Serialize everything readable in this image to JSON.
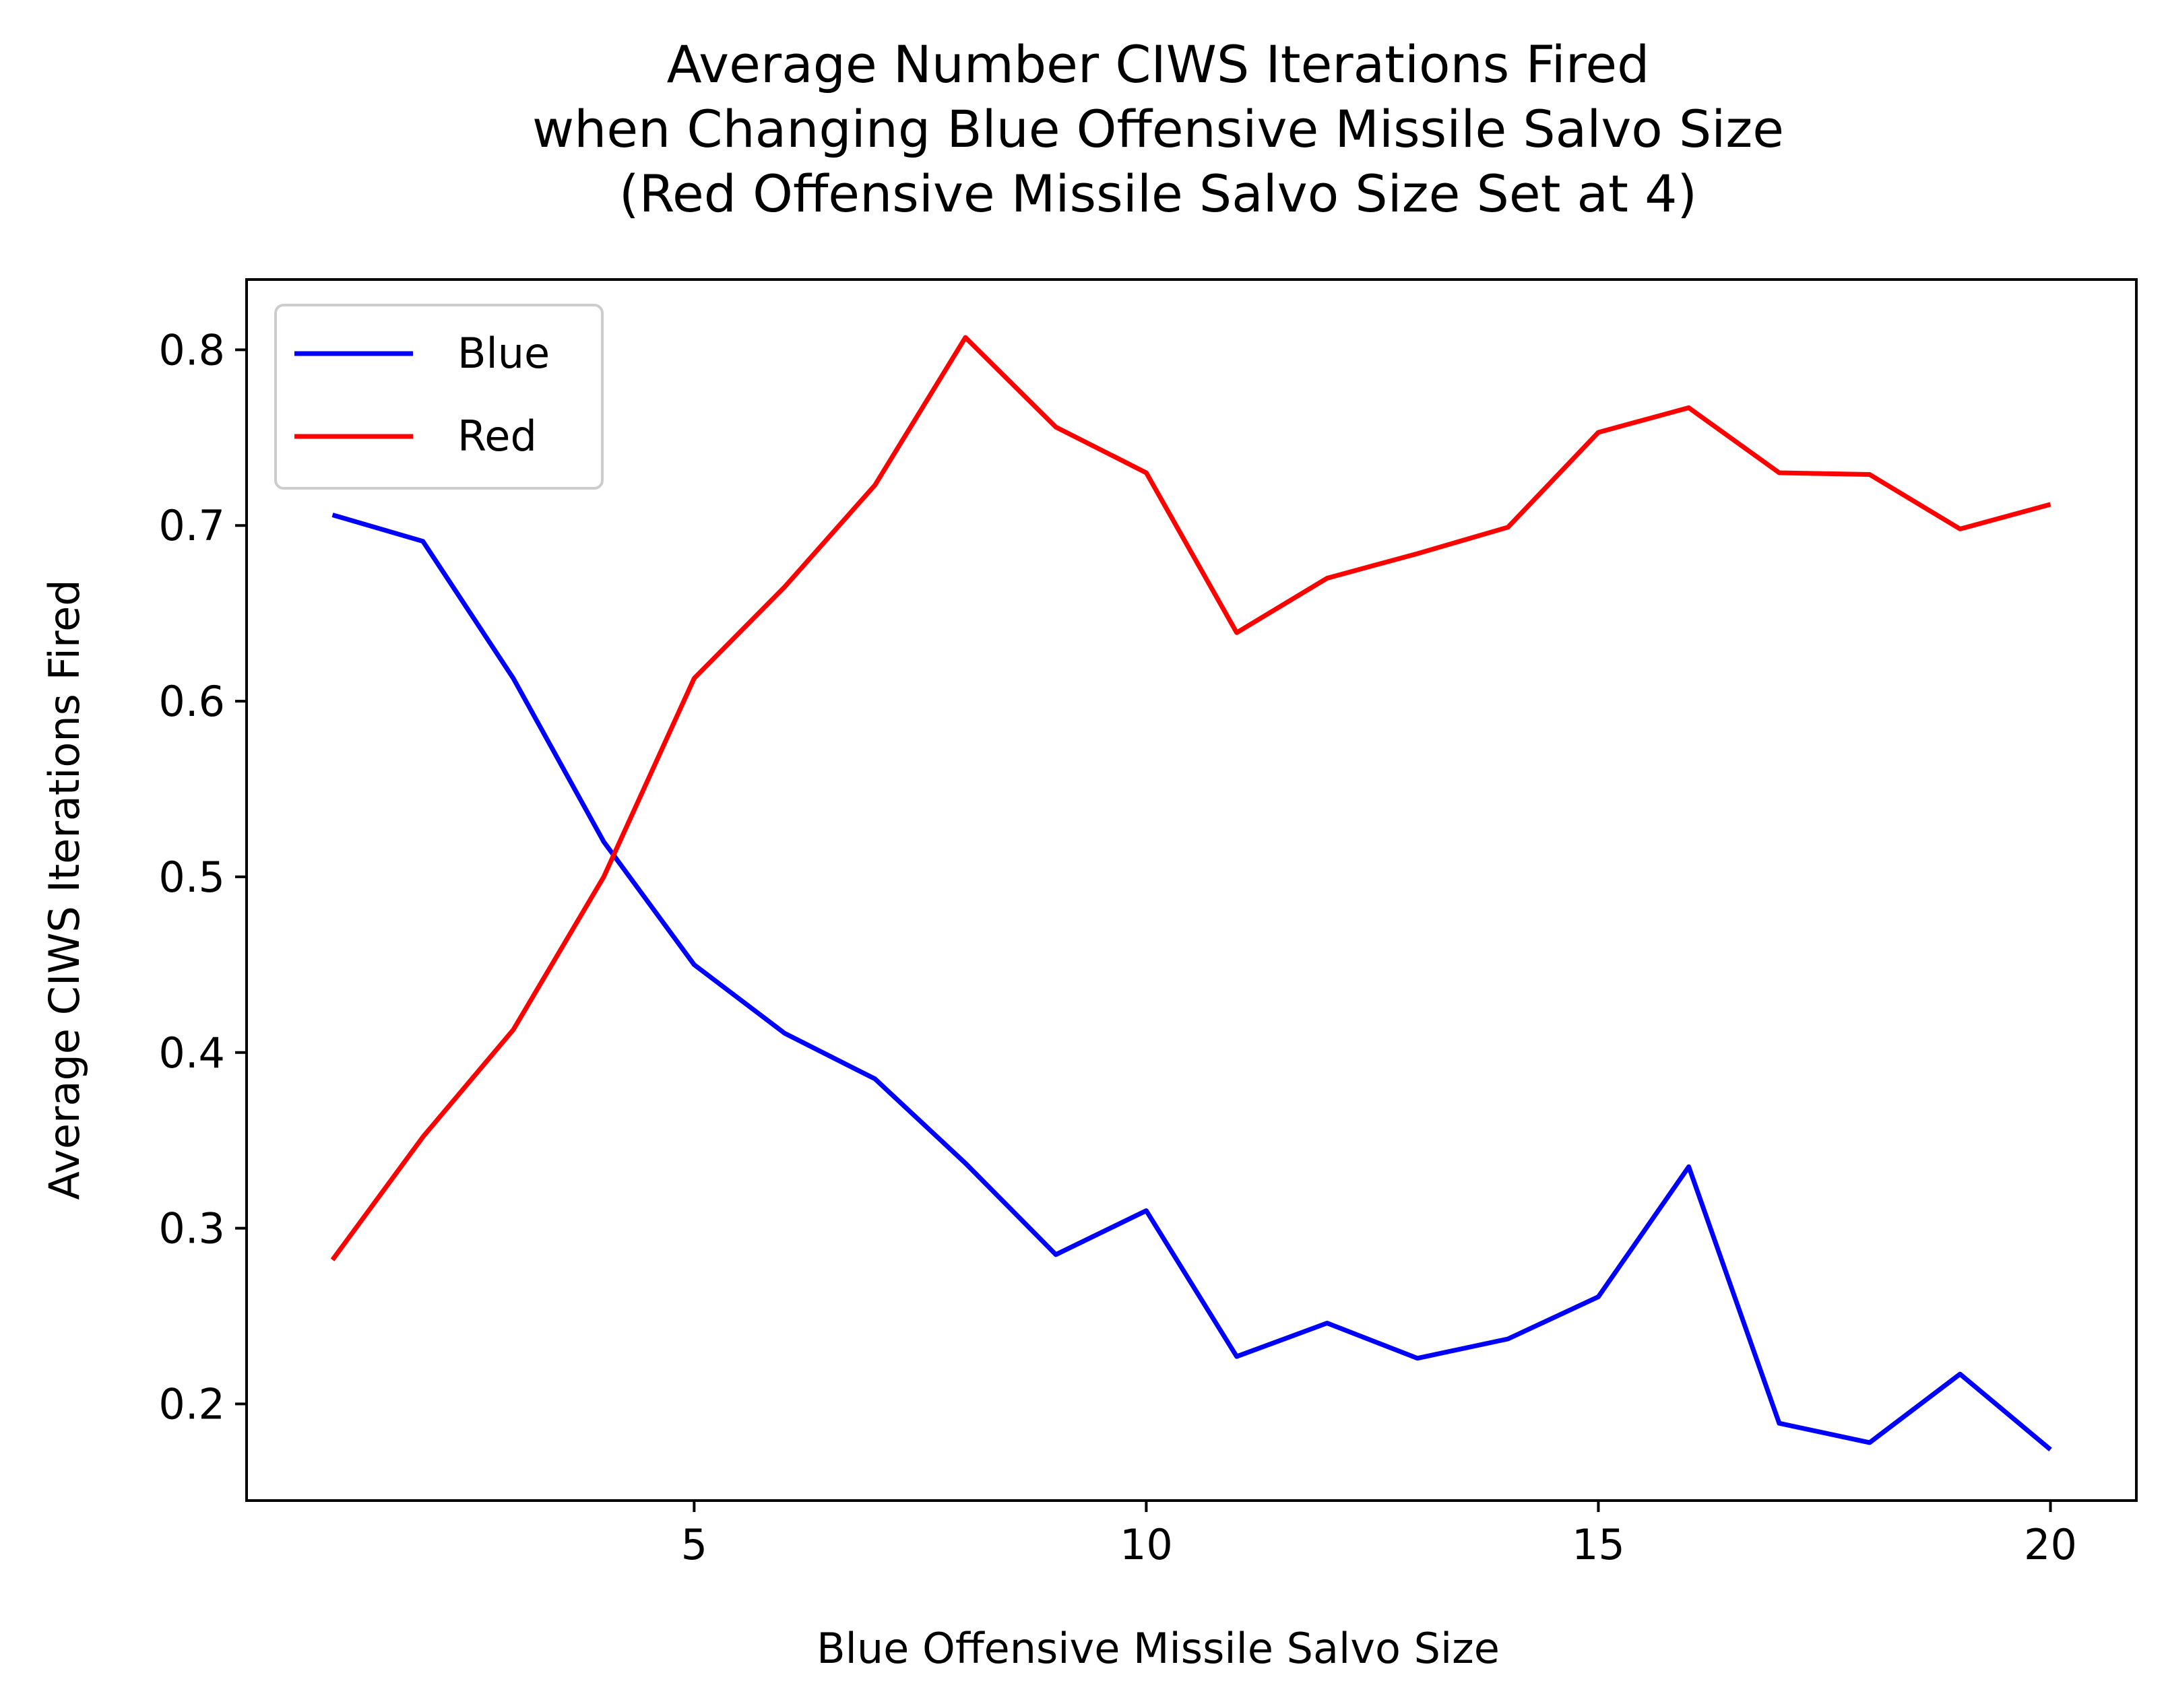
{
  "chart_data": {
    "type": "line",
    "title_lines": [
      "Average Number CIWS Iterations Fired",
      "when Changing Blue Offensive Missile Salvo Size",
      "(Red Offensive Missile Salvo Size Set at 4)"
    ],
    "xlabel": "Blue Offensive Missile Salvo Size",
    "ylabel": "Average CIWS Iterations Fired",
    "xlim": [
      0.05,
      20.95
    ],
    "ylim": [
      0.145,
      0.84
    ],
    "xticks": [
      5,
      10,
      15,
      20
    ],
    "xtick_labels": [
      "5",
      "10",
      "15",
      "20"
    ],
    "yticks": [
      0.2,
      0.3,
      0.4,
      0.5,
      0.6,
      0.7,
      0.8
    ],
    "ytick_labels": [
      "0.2",
      "0.3",
      "0.4",
      "0.5",
      "0.6",
      "0.7",
      "0.8"
    ],
    "grid": false,
    "legend_position": "upper-left",
    "x": [
      1,
      2,
      3,
      4,
      5,
      6,
      7,
      8,
      9,
      10,
      11,
      12,
      13,
      14,
      15,
      16,
      17,
      18,
      19,
      20
    ],
    "series": [
      {
        "name": "Blue",
        "color": "#0000ff",
        "values": [
          0.706,
          0.691,
          0.613,
          0.52,
          0.45,
          0.411,
          0.385,
          0.337,
          0.285,
          0.31,
          0.227,
          0.246,
          0.226,
          0.237,
          0.261,
          0.335,
          0.189,
          0.178,
          0.217,
          0.174
        ]
      },
      {
        "name": "Red",
        "color": "#ff0000",
        "values": [
          0.282,
          0.352,
          0.413,
          0.5,
          0.613,
          0.665,
          0.723,
          0.807,
          0.756,
          0.73,
          0.639,
          0.67,
          0.684,
          0.699,
          0.753,
          0.767,
          0.73,
          0.729,
          0.698,
          0.712
        ]
      }
    ]
  }
}
